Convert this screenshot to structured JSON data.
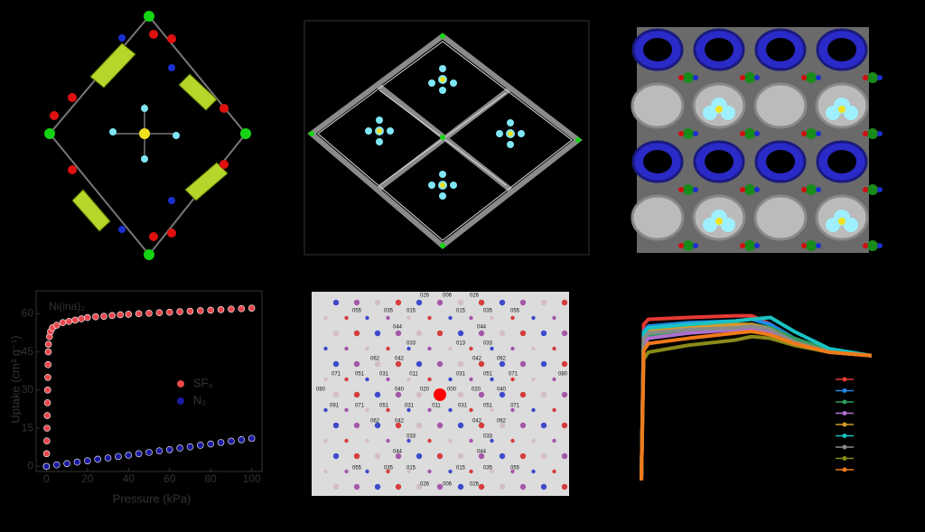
{
  "chart_data": [
    {
      "type": "scatter",
      "title": "Ni(ina)₂",
      "y_label": "Uptake (cm³ g⁻¹)",
      "x_label": "Pressure (kPa)",
      "xlim": [
        -5,
        105
      ],
      "ylim": [
        -2,
        69
      ],
      "xticks": [
        0,
        20,
        40,
        60,
        80,
        100
      ],
      "yticks": [
        0,
        15,
        30,
        45,
        60
      ],
      "series": [
        {
          "name": "SF₆",
          "color": "#e8474c",
          "x": [
            0,
            0.1,
            0.2,
            0.3,
            0.4,
            0.5,
            0.6,
            0.7,
            0.8,
            0.9,
            1,
            1.5,
            2,
            3,
            5,
            8,
            11,
            14,
            17,
            20,
            24,
            28,
            32,
            36,
            40,
            45,
            50,
            55,
            60,
            65,
            70,
            75,
            80,
            85,
            90,
            95,
            100
          ],
          "values": [
            0,
            5,
            10,
            15,
            20,
            25,
            30,
            35,
            40,
            45,
            48,
            51,
            53,
            54.5,
            55.5,
            56.5,
            57,
            57.5,
            58,
            58.5,
            58.8,
            59,
            59.3,
            59.6,
            59.8,
            60,
            60.2,
            60.4,
            60.6,
            60.8,
            61,
            61.2,
            61.4,
            61.6,
            61.8,
            62,
            62.2
          ]
        },
        {
          "name": "N₂",
          "color": "#1a1aa0",
          "x": [
            0,
            5,
            10,
            15,
            20,
            25,
            30,
            35,
            40,
            45,
            50,
            55,
            60,
            65,
            70,
            75,
            80,
            85,
            90,
            95,
            100
          ],
          "values": [
            0,
            0.6,
            1.1,
            1.7,
            2.2,
            2.8,
            3.3,
            3.9,
            4.4,
            5,
            5.5,
            6.1,
            6.6,
            7.2,
            7.7,
            8.3,
            8.8,
            9.4,
            9.9,
            10.5,
            11
          ]
        }
      ]
    },
    {
      "type": "line",
      "xlim": [
        0,
        100
      ],
      "ylim": [
        0,
        100
      ],
      "x": [
        0,
        1,
        3,
        20,
        40,
        47,
        55,
        65,
        80,
        98
      ],
      "series": [
        {
          "color": "#e53935",
          "values": [
            0,
            90,
            93,
            94,
            95,
            95,
            90,
            82,
            75,
            72
          ]
        },
        {
          "color": "#1e88e5",
          "values": [
            0,
            86,
            89,
            91,
            92,
            93,
            90,
            82,
            75,
            72
          ]
        },
        {
          "color": "#2e9e5b",
          "values": [
            0,
            80,
            84,
            87,
            89,
            90,
            88,
            82,
            75,
            72
          ]
        },
        {
          "color": "#b06fd0",
          "values": [
            0,
            78,
            82,
            85,
            87,
            88,
            86,
            80,
            74,
            72
          ]
        },
        {
          "color": "#d49a2a",
          "values": [
            0,
            83,
            86,
            88,
            90,
            90,
            87,
            80,
            74,
            72
          ]
        },
        {
          "color": "#19c3c3",
          "values": [
            0,
            85,
            88,
            90,
            92,
            93,
            94,
            86,
            76,
            72
          ]
        },
        {
          "color": "#8a8a8a",
          "values": [
            0,
            82,
            85,
            87,
            88,
            89,
            87,
            80,
            74,
            72
          ]
        },
        {
          "color": "#8a8a1a",
          "values": [
            0,
            70,
            74,
            78,
            81,
            83,
            82,
            78,
            74,
            72
          ]
        },
        {
          "color": "#f07a1a",
          "values": [
            0,
            75,
            79,
            82,
            85,
            86,
            84,
            79,
            74,
            72
          ]
        }
      ]
    }
  ],
  "diffraction": {
    "labels": [
      "026",
      "006",
      "026",
      "055",
      "035",
      "015",
      "015",
      "035",
      "055",
      "044",
      "044",
      "033",
      "013",
      "033",
      "062",
      "042",
      "042",
      "062",
      "071",
      "051",
      "031",
      "011",
      "031",
      "051",
      "071",
      "080",
      "080",
      "040",
      "020",
      "000",
      "020",
      "040",
      "091",
      "071",
      "051",
      "031",
      "011",
      "031",
      "051",
      "071",
      "062",
      "042",
      "042",
      "062",
      "033",
      "033",
      "044",
      "044",
      "055",
      "035",
      "015",
      "015",
      "035",
      "055",
      "026",
      "006",
      "026"
    ]
  }
}
